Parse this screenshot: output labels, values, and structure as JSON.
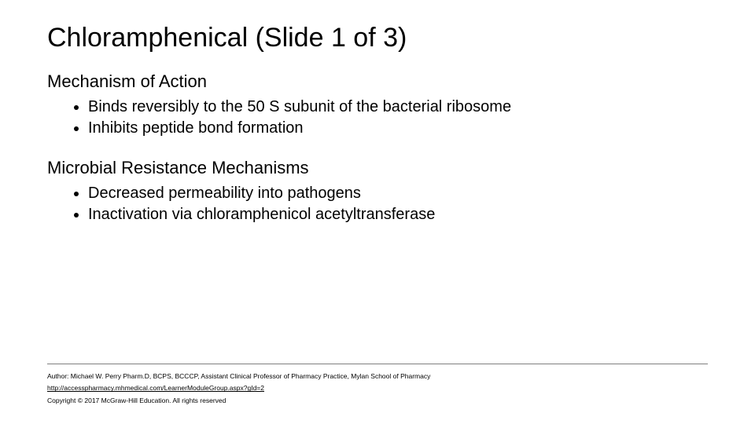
{
  "title": "Chloramphenical  (Slide 1 of 3)",
  "sections": [
    {
      "heading": "Mechanism of Action",
      "bullets": [
        "Binds reversibly to the 50 S subunit of the bacterial ribosome",
        "Inhibits peptide bond formation"
      ]
    },
    {
      "heading": "Microbial Resistance Mechanisms",
      "bullets": [
        "Decreased permeability into pathogens",
        "Inactivation via chloramphenicol acetyltransferase"
      ]
    }
  ],
  "footer": {
    "author": "Author: Michael W. Perry Pharm.D, BCPS, BCCCP, Assistant Clinical Professor of Pharmacy Practice, Mylan School of Pharmacy",
    "link": "http://accesspharmacy.mhmedical.com/LearnerModuleGroup.aspx?gId=2",
    "copyright": "Copyright © 2017 McGraw-Hill Education. All rights reserved"
  },
  "colors": {
    "background": "#ffffff",
    "text": "#000000",
    "divider": "#7f7f7f"
  },
  "typography": {
    "title_fontsize": 34,
    "heading_fontsize": 22,
    "body_fontsize": 20,
    "footer_fontsize": 8.5,
    "font_family": "Arial"
  }
}
